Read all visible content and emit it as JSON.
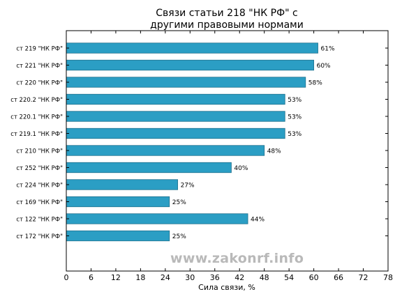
{
  "chart_data": {
    "type": "bar",
    "orientation": "horizontal",
    "title": "Связи статьи 218 \"НК РФ\" с",
    "subtitle": "другими правовыми нормами",
    "xlabel": "Сила связи, %",
    "ylabel": "",
    "xlim": [
      0,
      78
    ],
    "xticks": [
      "0",
      "6",
      "12",
      "18",
      "24",
      "30",
      "36",
      "42",
      "48",
      "54",
      "60",
      "66",
      "72",
      "78"
    ],
    "categories": [
      "ст 219 \"НК РФ\"",
      "ст 221 \"НК РФ\"",
      "ст 220 \"НК РФ\"",
      "ст 220.2 \"НК РФ\"",
      "ст 220.1 \"НК РФ\"",
      "ст 219.1 \"НК РФ\"",
      "ст 210 \"НК РФ\"",
      "ст 252 \"НК РФ\"",
      "ст 224 \"НК РФ\"",
      "ст 169 \"НК РФ\"",
      "ст 122 \"НК РФ\"",
      "ст 172 \"НК РФ\""
    ],
    "values": [
      61,
      60,
      58,
      53,
      53,
      53,
      48,
      40,
      27,
      25,
      44,
      25
    ],
    "value_labels": [
      "61%",
      "60%",
      "58%",
      "53%",
      "53%",
      "53%",
      "48%",
      "40%",
      "27%",
      "25%",
      "44%",
      "25%"
    ],
    "bar_color": "#2b9ec4",
    "bar_edge_color": "#1d6f8c",
    "grid": false
  },
  "watermark": "www.zakonrf.info"
}
